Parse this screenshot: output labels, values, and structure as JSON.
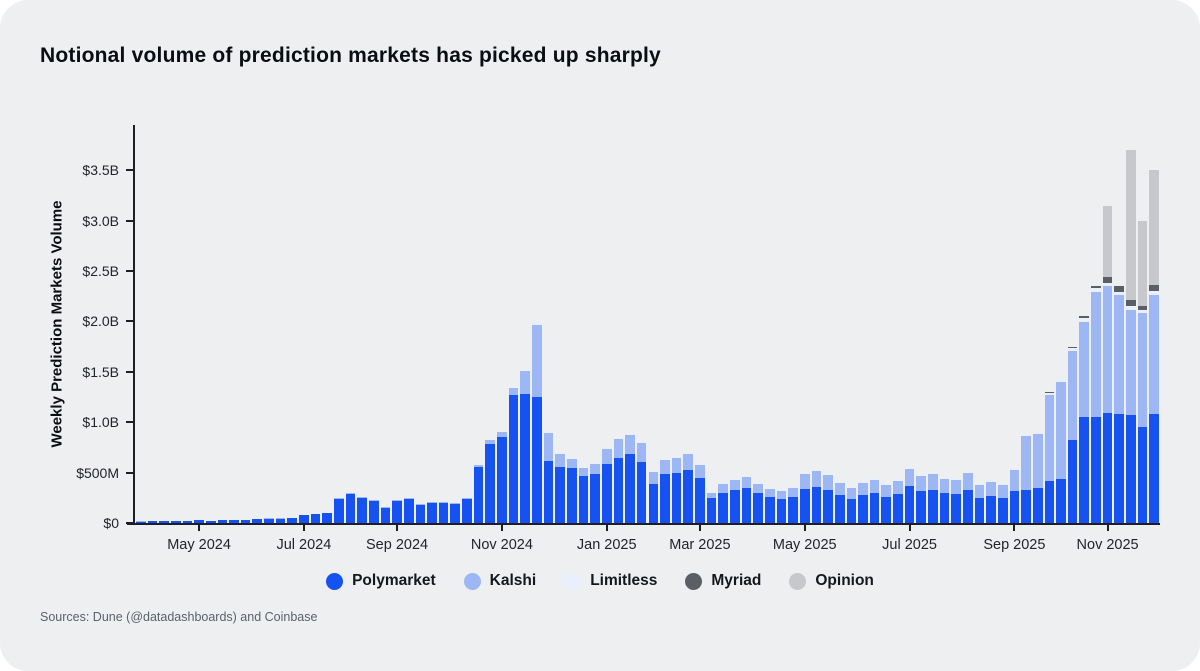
{
  "title": "Notional volume of prediction markets has picked up sharply",
  "source_note": "Sources: Dune (@datadashboards) and Coinbase",
  "colors": {
    "background": "#edeff0",
    "axis": "#1c1f26",
    "text": "#0a0d14",
    "muted_text": "#5b616e"
  },
  "chart_data": {
    "type": "bar",
    "stacked": true,
    "title": "Notional volume of prediction markets has picked up sharply",
    "ylabel": "Weekly Prediction Markets Volume",
    "xlabel": "",
    "unit": "USD millions per week",
    "grid": false,
    "legend_position": "bottom",
    "ylim": [
      0,
      3950
    ],
    "ytick_values": [
      0,
      500,
      1000,
      1500,
      2000,
      2500,
      3000,
      3500
    ],
    "ytick_labels": [
      "$0",
      "$500M",
      "$1.0B",
      "$1.5B",
      "$2.0B",
      "$2.5B",
      "$3.0B",
      "$3.5B"
    ],
    "xtick_labels": [
      "May 2024",
      "Jul 2024",
      "Sep 2024",
      "Nov 2024",
      "Jan 2025",
      "Mar 2025",
      "May 2025",
      "Jul 2025",
      "Sep 2025",
      "Nov 2025"
    ],
    "xtick_indices": [
      5,
      14,
      22,
      31,
      40,
      48,
      57,
      66,
      75,
      83
    ],
    "x": [
      "2024-03-25",
      "2024-04-01",
      "2024-04-08",
      "2024-04-15",
      "2024-04-22",
      "2024-04-29",
      "2024-05-06",
      "2024-05-13",
      "2024-05-20",
      "2024-05-27",
      "2024-06-03",
      "2024-06-10",
      "2024-06-17",
      "2024-06-24",
      "2024-07-01",
      "2024-07-08",
      "2024-07-15",
      "2024-07-22",
      "2024-07-29",
      "2024-08-05",
      "2024-08-12",
      "2024-08-19",
      "2024-08-26",
      "2024-09-02",
      "2024-09-09",
      "2024-09-16",
      "2024-09-23",
      "2024-09-30",
      "2024-10-07",
      "2024-10-14",
      "2024-10-21",
      "2024-10-28",
      "2024-11-04",
      "2024-11-11",
      "2024-11-18",
      "2024-11-25",
      "2024-12-02",
      "2024-12-09",
      "2024-12-16",
      "2024-12-23",
      "2024-12-30",
      "2025-01-06",
      "2025-01-13",
      "2025-01-20",
      "2025-01-27",
      "2025-02-03",
      "2025-02-10",
      "2025-02-17",
      "2025-02-24",
      "2025-03-03",
      "2025-03-10",
      "2025-03-17",
      "2025-03-24",
      "2025-03-31",
      "2025-04-07",
      "2025-04-14",
      "2025-04-21",
      "2025-04-28",
      "2025-05-05",
      "2025-05-12",
      "2025-05-19",
      "2025-05-26",
      "2025-06-02",
      "2025-06-09",
      "2025-06-16",
      "2025-06-23",
      "2025-06-30",
      "2025-07-07",
      "2025-07-14",
      "2025-07-21",
      "2025-07-28",
      "2025-08-04",
      "2025-08-11",
      "2025-08-18",
      "2025-08-25",
      "2025-09-01",
      "2025-09-08",
      "2025-09-15",
      "2025-09-22",
      "2025-09-29",
      "2025-10-06",
      "2025-10-13",
      "2025-10-20",
      "2025-10-27",
      "2025-11-03",
      "2025-11-10",
      "2025-11-17",
      "2025-11-24"
    ],
    "series": [
      {
        "name": "Polymarket",
        "color": "#1652f0",
        "values": [
          15,
          18,
          17,
          22,
          20,
          25,
          22,
          28,
          30,
          26,
          38,
          42,
          40,
          48,
          75,
          85,
          95,
          240,
          290,
          245,
          215,
          150,
          215,
          235,
          180,
          195,
          200,
          190,
          235,
          555,
          785,
          855,
          1275,
          1280,
          1250,
          620,
          555,
          545,
          465,
          490,
          590,
          650,
          680,
          610,
          390,
          490,
          500,
          530,
          445,
          245,
          300,
          330,
          350,
          295,
          255,
          240,
          255,
          340,
          355,
          330,
          280,
          240,
          275,
          300,
          260,
          285,
          370,
          315,
          330,
          295,
          285,
          330,
          250,
          265,
          245,
          320,
          330,
          345,
          420,
          435,
          820,
          1055,
          1050,
          1090,
          1080,
          1075,
          950,
          1080
        ]
      },
      {
        "name": "Kalshi",
        "color": "#9db7f4",
        "values": [
          2,
          2,
          2,
          3,
          3,
          3,
          3,
          4,
          4,
          4,
          5,
          5,
          5,
          6,
          7,
          7,
          8,
          10,
          12,
          10,
          10,
          10,
          10,
          12,
          10,
          10,
          12,
          12,
          15,
          25,
          35,
          50,
          70,
          230,
          715,
          275,
          135,
          95,
          80,
          95,
          140,
          185,
          195,
          180,
          115,
          140,
          150,
          155,
          130,
          55,
          85,
          100,
          110,
          95,
          80,
          80,
          90,
          145,
          160,
          145,
          120,
          105,
          125,
          130,
          115,
          130,
          170,
          150,
          160,
          140,
          140,
          165,
          130,
          145,
          135,
          210,
          530,
          535,
          850,
          960,
          885,
          940,
          1240,
          1260,
          1180,
          1040,
          1130,
          1180
        ]
      },
      {
        "name": "Limitless",
        "color": "#e9effc",
        "values": [
          0,
          0,
          0,
          0,
          0,
          0,
          0,
          0,
          0,
          0,
          0,
          0,
          0,
          0,
          0,
          0,
          0,
          0,
          0,
          0,
          0,
          0,
          0,
          0,
          0,
          0,
          0,
          0,
          0,
          0,
          0,
          0,
          5,
          10,
          25,
          10,
          15,
          15,
          15,
          15,
          15,
          20,
          20,
          20,
          15,
          15,
          15,
          15,
          15,
          10,
          10,
          10,
          10,
          10,
          10,
          10,
          10,
          15,
          15,
          15,
          15,
          10,
          10,
          15,
          15,
          15,
          15,
          15,
          15,
          15,
          15,
          15,
          15,
          15,
          15,
          15,
          20,
          20,
          25,
          30,
          35,
          40,
          40,
          35,
          35,
          35,
          35,
          40
        ]
      },
      {
        "name": "Myriad",
        "color": "#5a5f66",
        "values": [
          0,
          0,
          0,
          0,
          0,
          0,
          0,
          0,
          0,
          0,
          0,
          0,
          0,
          0,
          0,
          0,
          0,
          0,
          0,
          0,
          0,
          0,
          0,
          0,
          0,
          0,
          0,
          0,
          0,
          0,
          0,
          0,
          0,
          0,
          0,
          0,
          0,
          0,
          0,
          0,
          0,
          0,
          0,
          0,
          0,
          0,
          0,
          0,
          0,
          0,
          0,
          0,
          0,
          0,
          0,
          0,
          0,
          0,
          0,
          0,
          0,
          0,
          0,
          0,
          0,
          0,
          0,
          0,
          0,
          0,
          0,
          0,
          0,
          0,
          0,
          0,
          5,
          5,
          5,
          5,
          10,
          15,
          20,
          55,
          55,
          60,
          35,
          60
        ]
      },
      {
        "name": "Opinion",
        "color": "#c6c8cb",
        "values": [
          0,
          0,
          0,
          0,
          0,
          0,
          0,
          0,
          0,
          0,
          0,
          0,
          0,
          0,
          0,
          0,
          0,
          0,
          0,
          0,
          0,
          0,
          0,
          0,
          0,
          0,
          0,
          0,
          0,
          0,
          0,
          0,
          0,
          0,
          0,
          0,
          0,
          0,
          0,
          0,
          0,
          0,
          0,
          0,
          0,
          0,
          0,
          0,
          0,
          0,
          0,
          0,
          0,
          0,
          0,
          0,
          0,
          0,
          0,
          0,
          0,
          0,
          0,
          0,
          0,
          0,
          0,
          0,
          0,
          0,
          0,
          0,
          0,
          0,
          0,
          0,
          0,
          0,
          0,
          0,
          0,
          0,
          0,
          710,
          0,
          1490,
          850,
          1140
        ]
      }
    ]
  }
}
